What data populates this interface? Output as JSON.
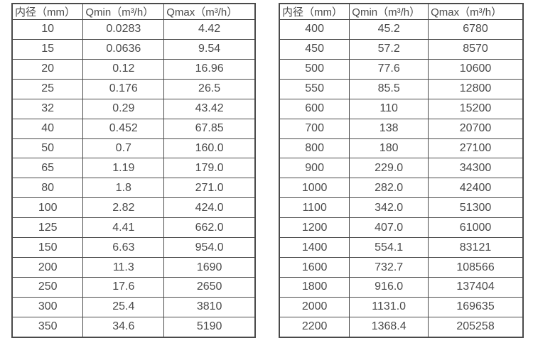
{
  "page": {
    "background_color": "#ffffff",
    "border_color": "#4a4a4a",
    "text_color": "#4a4a4a"
  },
  "tables": [
    {
      "name": "flow-rate-table-small-diameters",
      "headers": [
        "内径（mm）",
        "Qmin（m³/h）",
        "Qmax（m³/h）"
      ],
      "rows": [
        [
          "10",
          "0.0283",
          "4.42"
        ],
        [
          "15",
          "0.0636",
          "9.54"
        ],
        [
          "20",
          "0.12",
          "16.96"
        ],
        [
          "25",
          "0.176",
          "26.5"
        ],
        [
          "32",
          "0.29",
          "43.42"
        ],
        [
          "40",
          "0.452",
          "67.85"
        ],
        [
          "50",
          "0.7",
          "160.0"
        ],
        [
          "65",
          "1.19",
          "179.0"
        ],
        [
          "80",
          "1.8",
          "271.0"
        ],
        [
          "100",
          "2.82",
          "424.0"
        ],
        [
          "125",
          "4.41",
          "662.0"
        ],
        [
          "150",
          "6.63",
          "954.0"
        ],
        [
          "200",
          "11.3",
          "1690"
        ],
        [
          "250",
          "17.6",
          "2650"
        ],
        [
          "300",
          "25.4",
          "3810"
        ],
        [
          "350",
          "34.6",
          "5190"
        ]
      ]
    },
    {
      "name": "flow-rate-table-large-diameters",
      "headers": [
        "内径（mm）",
        "Qmin（m³/h）",
        "Qmax（m³/h）"
      ],
      "rows": [
        [
          "400",
          "45.2",
          "6780"
        ],
        [
          "450",
          "57.2",
          "8570"
        ],
        [
          "500",
          "77.6",
          "10600"
        ],
        [
          "550",
          "85.5",
          "12800"
        ],
        [
          "600",
          "110",
          "15200"
        ],
        [
          "700",
          "138",
          "20700"
        ],
        [
          "800",
          "180",
          "27100"
        ],
        [
          "900",
          "229.0",
          "34300"
        ],
        [
          "1000",
          "282.0",
          "42400"
        ],
        [
          "1100",
          "342.0",
          "51300"
        ],
        [
          "1200",
          "407.0",
          "61000"
        ],
        [
          "1400",
          "554.1",
          "83121"
        ],
        [
          "1600",
          "732.7",
          "108566"
        ],
        [
          "1800",
          "916.0",
          "137404"
        ],
        [
          "2000",
          "1131.0",
          "169635"
        ],
        [
          "2200",
          "1368.4",
          "205258"
        ]
      ]
    }
  ]
}
